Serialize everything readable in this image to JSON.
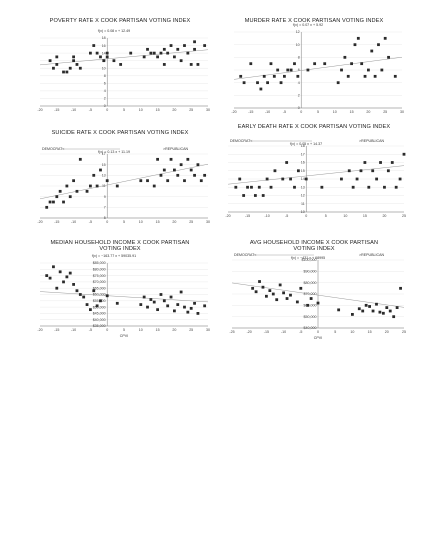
{
  "charts": [
    {
      "title": "POVERTY RATE X COOK PARTISAN VOTING INDEX",
      "equation": "f(x) = 0.08 x + 12.49",
      "xlabel": "",
      "leftnote": "",
      "rightnote": "",
      "chart_data": {
        "type": "scatter",
        "xlim": [
          -20,
          30
        ],
        "ylim": [
          0,
          18
        ],
        "xticks": [
          "-20",
          "-15",
          "-10",
          "-5",
          "0",
          "5",
          "10",
          "15",
          "20",
          "25",
          "30"
        ],
        "yticks": [
          "0",
          "2",
          "4",
          "6",
          "8",
          "10",
          "12",
          "14",
          "16",
          "18"
        ],
        "trend": {
          "slope": 0.08,
          "intercept": 12.49
        },
        "x": [
          -17,
          -16,
          -15,
          -15,
          -13,
          -12,
          -11,
          -10,
          -10,
          -9,
          -8,
          -5,
          -4,
          -3,
          -2,
          -1,
          0,
          0,
          2,
          4,
          7,
          11,
          12,
          13,
          14,
          15,
          16,
          17,
          17,
          18,
          19,
          20,
          21,
          22,
          23,
          24,
          25,
          26,
          26,
          27,
          29
        ],
        "y": [
          12,
          10,
          11,
          13,
          9,
          9,
          10,
          12,
          13,
          11,
          10,
          14,
          16,
          14,
          13,
          12,
          14,
          13,
          12,
          11,
          14,
          13,
          15,
          14,
          14,
          13,
          14,
          11,
          15,
          14,
          16,
          13,
          15,
          12,
          16,
          14,
          11,
          15,
          17,
          11,
          16
        ]
      }
    },
    {
      "title": "MURDER RATE X COOK PARTISAN VOTING INDEX",
      "equation": "f(x) = 0.07 x + 5.92",
      "xlabel": "",
      "leftnote": "",
      "rightnote": "",
      "chart_data": {
        "type": "scatter",
        "xlim": [
          -20,
          30
        ],
        "ylim": [
          0,
          12
        ],
        "xticks": [
          "-20",
          "-15",
          "-10",
          "-5",
          "0",
          "5",
          "10",
          "15",
          "20",
          "25",
          "30"
        ],
        "yticks": [
          "0",
          "2",
          "4",
          "6",
          "8",
          "10",
          "12"
        ],
        "trend": {
          "slope": 0.07,
          "intercept": 5.92
        },
        "x": [
          -18,
          -17,
          -15,
          -13,
          -12,
          -11,
          -10,
          -9,
          -8,
          -7,
          -6,
          -5,
          -4,
          -3,
          -2,
          -1,
          2,
          4,
          7,
          11,
          12,
          13,
          14,
          15,
          16,
          17,
          18,
          19,
          20,
          21,
          22,
          23,
          24,
          25,
          26,
          28
        ],
        "y": [
          5,
          4,
          7,
          4,
          3,
          5,
          4,
          7,
          5,
          6,
          4,
          5,
          6,
          6,
          7,
          5,
          6,
          7,
          7,
          4,
          6,
          8,
          5,
          7,
          10,
          11,
          7,
          5,
          6,
          9,
          5,
          10,
          6,
          11,
          8,
          5
        ]
      }
    },
    {
      "title": "SUICIDE RATE X COOK PARTISAN VOTING INDEX",
      "equation": "f(x) = 0.13 x + 11.19",
      "xlabel": "",
      "leftnote": "DEMOCRAT<",
      "rightnote": ">REPUBLICAN",
      "chart_data": {
        "type": "scatter",
        "xlim": [
          -20,
          30
        ],
        "ylim": [
          5,
          17
        ],
        "xticks": [
          "-20",
          "-15",
          "-10",
          "-5",
          "0",
          "5",
          "10",
          "15",
          "20",
          "25",
          "30"
        ],
        "yticks": [
          "5",
          "7",
          "9",
          "11",
          "13",
          "15",
          "17"
        ],
        "trend": {
          "slope": 0.13,
          "intercept": 11.19
        },
        "x": [
          -18,
          -17,
          -16,
          -15,
          -14,
          -13,
          -12,
          -11,
          -10,
          -9,
          -8,
          -6,
          -5,
          -4,
          -3,
          -2,
          0,
          3,
          10,
          12,
          14,
          15,
          16,
          17,
          18,
          19,
          20,
          21,
          22,
          23,
          24,
          25,
          26,
          27,
          28,
          29
        ],
        "y": [
          7,
          8,
          8,
          9,
          10,
          8,
          11,
          9,
          12,
          10,
          16,
          10,
          11,
          13,
          11,
          14,
          12,
          11,
          12,
          12,
          11,
          16,
          13,
          14,
          12,
          16,
          14,
          13,
          15,
          12,
          16,
          14,
          13,
          15,
          12,
          13
        ]
      }
    },
    {
      "title": "EARLY DEATH RATE X COOK PARTISAN VOTING INDEX",
      "equation": "f(x) = 0.05 x + 14.37",
      "xlabel": "",
      "leftnote": "DEMOCRAT<",
      "rightnote": ">REPUBLICAN",
      "chart_data": {
        "type": "scatter",
        "xlim": [
          -20,
          25
        ],
        "ylim": [
          10,
          18
        ],
        "xticks": [
          "-20",
          "-15",
          "-10",
          "-5",
          "0",
          "5",
          "10",
          "15",
          "20",
          "25"
        ],
        "yticks": [
          "10",
          "11",
          "12",
          "13",
          "14",
          "15",
          "16",
          "17",
          "18"
        ],
        "trend": {
          "slope": 0.05,
          "intercept": 14.37
        },
        "x": [
          -18,
          -17,
          -16,
          -15,
          -14,
          -13,
          -12,
          -11,
          -10,
          -9,
          -8,
          -6,
          -5,
          -4,
          -3,
          -2,
          0,
          4,
          9,
          11,
          12,
          13,
          14,
          15,
          16,
          17,
          18,
          19,
          20,
          21,
          22,
          23,
          24,
          25
        ],
        "y": [
          13,
          14,
          12,
          13,
          13,
          12,
          13,
          12,
          14,
          13,
          15,
          14,
          16,
          14,
          13,
          15,
          14,
          13,
          14,
          15,
          13,
          14,
          15,
          16,
          13,
          15,
          14,
          16,
          13,
          15,
          16,
          13,
          14,
          17
        ]
      }
    },
    {
      "title": "MEDIAN HOUSEHOLD INCOME X COOK PARTISAN VOTING INDEX",
      "equation": "f(x) = −163.77 x + 59035.91",
      "xlabel": "CPVI",
      "leftnote": "",
      "rightnote": "",
      "chart_data": {
        "type": "scatter",
        "xlim": [
          -20,
          30
        ],
        "ylim": [
          35000,
          85000
        ],
        "xticks": [
          "-20",
          "-15",
          "-10",
          "-5",
          "0",
          "5",
          "10",
          "15",
          "20",
          "25",
          "30"
        ],
        "yticks": [
          "$35,000",
          "$40,000",
          "$45,000",
          "$50,000",
          "$55,000",
          "$60,000",
          "$65,000",
          "$70,000",
          "$75,000",
          "$80,000",
          "$85,000"
        ],
        "trend": {
          "slope": -163.77,
          "intercept": 59035.91
        },
        "x": [
          -18,
          -17,
          -16,
          -15,
          -14,
          -13,
          -12,
          -11,
          -10,
          -9,
          -8,
          -7,
          -6,
          -5,
          -4,
          -3,
          -2,
          0,
          3,
          10,
          11,
          12,
          13,
          14,
          15,
          16,
          17,
          18,
          19,
          20,
          21,
          22,
          23,
          24,
          25,
          26,
          27,
          29
        ],
        "y": [
          75000,
          73000,
          82000,
          65000,
          78000,
          70000,
          74000,
          77000,
          68000,
          63000,
          60000,
          58000,
          52000,
          48000,
          63000,
          51000,
          55000,
          59000,
          53000,
          52000,
          58000,
          50000,
          56000,
          54000,
          48000,
          60000,
          55000,
          51000,
          58000,
          47000,
          52000,
          62000,
          50000,
          46000,
          49000,
          53000,
          45000,
          51000
        ]
      }
    },
    {
      "title": "AVG HOUSEHOLD INCOME X COOK PARTISAN VOTING INDEX",
      "equation": "f(x) = −431 x + 68995",
      "xlabel": "CPVI",
      "leftnote": "DEMOCRAT<",
      "rightnote": ">REPUBLICAN",
      "chart_data": {
        "type": "scatter",
        "xlim": [
          -25,
          25
        ],
        "ylim": [
          40000,
          100000
        ],
        "xticks": [
          "-25",
          "-20",
          "-15",
          "-10",
          "-5",
          "0",
          "5",
          "10",
          "15",
          "20",
          "25"
        ],
        "yticks": [
          "$40,000",
          "$50,000",
          "$60,000",
          "$70,000",
          "$80,000",
          "$90,000",
          "$100,000"
        ],
        "trend": {
          "slope": -431,
          "intercept": 68995
        },
        "x": [
          -19,
          -18,
          -17,
          -16,
          -15,
          -14,
          -13,
          -12,
          -11,
          -10,
          -9,
          -8,
          -6,
          -5,
          -3,
          -2,
          0,
          6,
          10,
          12,
          13,
          14,
          15,
          16,
          17,
          18,
          19,
          20,
          21,
          22,
          23,
          24
        ],
        "y": [
          75000,
          72000,
          81000,
          76000,
          68000,
          73000,
          70000,
          65000,
          78000,
          71000,
          66000,
          69000,
          63000,
          75000,
          60000,
          66000,
          62000,
          56000,
          52000,
          57000,
          55000,
          60000,
          59000,
          55000,
          61000,
          54000,
          53000,
          58000,
          55000,
          50000,
          58000,
          75000
        ]
      }
    }
  ]
}
